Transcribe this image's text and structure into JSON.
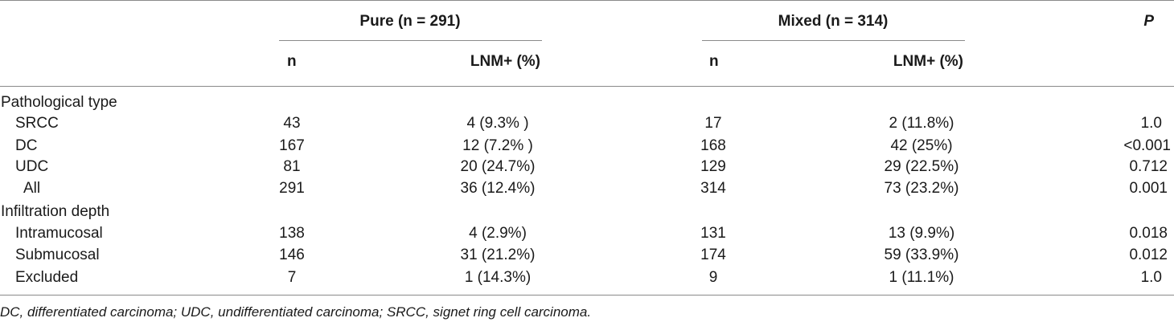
{
  "table": {
    "group_headers": {
      "pure": "Pure (n = 291)",
      "mixed": "Mixed (n = 314)",
      "p": "P"
    },
    "sub_headers": {
      "pure_n": "n",
      "pure_lnm": "LNM+ (%)",
      "mixed_n": "n",
      "mixed_lnm": "LNM+ (%)"
    },
    "sections": [
      {
        "title": "Pathological type",
        "rows": [
          {
            "label": "SRCC",
            "pure_n": "43",
            "pure_lnm": "4 (9.3% )",
            "mixed_n": "17",
            "mixed_lnm": "2 (11.8%)",
            "p": "1.0"
          },
          {
            "label": "DC",
            "pure_n": "167",
            "pure_lnm": "12 (7.2% )",
            "mixed_n": "168",
            "mixed_lnm": "42 (25%)",
            "p": "<0.001"
          },
          {
            "label": "UDC",
            "pure_n": "81",
            "pure_lnm": "20 (24.7%)",
            "mixed_n": "129",
            "mixed_lnm": "29 (22.5%)",
            "p": "0.712"
          },
          {
            "label": "All",
            "pure_n": "291",
            "pure_lnm": "36 (12.4%)",
            "mixed_n": "314",
            "mixed_lnm": "73 (23.2%)",
            "p": "0.001"
          }
        ]
      },
      {
        "title": "Infiltration depth",
        "rows": [
          {
            "label": "Intramucosal",
            "pure_n": "138",
            "pure_lnm": "4 (2.9%)",
            "mixed_n": "131",
            "mixed_lnm": "13 (9.9%)",
            "p": "0.018"
          },
          {
            "label": "Submucosal",
            "pure_n": "146",
            "pure_lnm": "31 (21.2%)",
            "mixed_n": "174",
            "mixed_lnm": "59 (33.9%)",
            "p": "0.012"
          },
          {
            "label": "Excluded",
            "pure_n": "7",
            "pure_lnm": "1 (14.3%)",
            "mixed_n": "9",
            "mixed_lnm": "1 (11.1%)",
            "p": "1.0"
          }
        ]
      }
    ],
    "footnote": "DC, differentiated carcinoma; UDC, undifferentiated carcinoma; SRCC, signet ring cell carcinoma."
  }
}
